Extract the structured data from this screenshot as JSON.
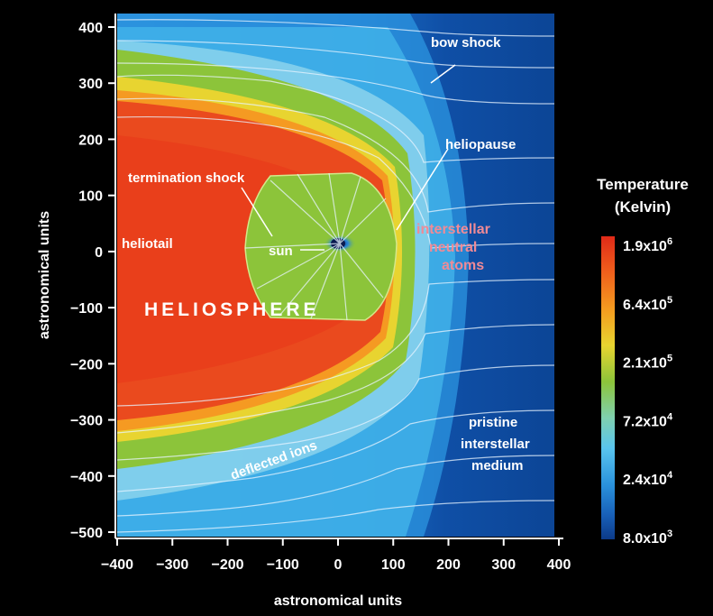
{
  "chart_data": {
    "type": "heatmap",
    "title": "",
    "xlabel": "astronomical units",
    "ylabel": "astronomical units",
    "xlim": [
      -400,
      400
    ],
    "ylim": [
      -510,
      420
    ],
    "x_ticks": [
      "−400",
      "−300",
      "−200",
      "−100",
      "0",
      "100",
      "200",
      "300",
      "400"
    ],
    "x_tick_values": [
      -400,
      -300,
      -200,
      -100,
      0,
      100,
      200,
      300,
      400
    ],
    "y_ticks": [
      "400",
      "300",
      "200",
      "100",
      "0",
      "−100",
      "−200",
      "−300",
      "−400",
      "−500"
    ],
    "y_tick_values": [
      400,
      300,
      200,
      100,
      0,
      -100,
      -200,
      -300,
      -400,
      -500
    ],
    "colorbar": {
      "title_line1": "Temperature",
      "title_line2": "(Kelvin)",
      "labels": [
        {
          "mantissa": "1.9x10",
          "exp": "6"
        },
        {
          "mantissa": "6.4x10",
          "exp": "5"
        },
        {
          "mantissa": "2.1x10",
          "exp": "5"
        },
        {
          "mantissa": "7.2x10",
          "exp": "4"
        },
        {
          "mantissa": "2.4x10",
          "exp": "4"
        },
        {
          "mantissa": "8.0x10",
          "exp": "3"
        }
      ],
      "colors": [
        "#e3361e",
        "#f2a324",
        "#8cc43a",
        "#4cc0e8",
        "#1f7fcb",
        "#0d3f8c"
      ]
    },
    "annotations": {
      "bow_shock": "bow shock",
      "heliopause": "heliopause",
      "termination_shock": "termination shock",
      "heliotail": "heliotail",
      "sun": "sun",
      "heliosphere": "HELIOSPHERE",
      "interstellar_line1": "interstellar",
      "interstellar_line2": "neutral",
      "interstellar_line3": "atoms",
      "deflected_ions": "deflected ions",
      "pristine_line1": "pristine",
      "pristine_line2": "interstellar",
      "pristine_line3": "medium"
    }
  }
}
